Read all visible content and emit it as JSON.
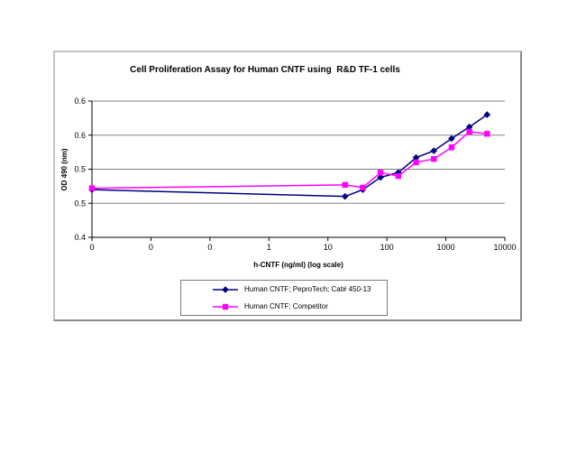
{
  "chart_data": {
    "type": "line",
    "title": "Cell Proliferation Assay for Human CNTF using  R&D TF-1 cells",
    "xlabel": "h-CNTF (ng/ml) (log scale)",
    "ylabel": "OD 490 (nm)",
    "x_scale": "log",
    "grid": "horizontal",
    "legend_position": "bottom",
    "ylim": [
      0.4,
      0.6
    ],
    "y_tick_values": [
      0.6,
      0.55,
      0.5,
      0.45,
      0.4
    ],
    "y_tick_labels": [
      "0.6",
      "0.6",
      "0.5",
      "0.5",
      "0.4"
    ],
    "x_tick_values": [
      0.001,
      0.01,
      0.1,
      1,
      10,
      100,
      1000,
      10000
    ],
    "x_tick_labels": [
      "0",
      "0",
      "0",
      "1",
      "10",
      "100",
      "1000",
      "10000"
    ],
    "x": [
      0.001,
      19.5,
      39,
      78,
      156,
      312.5,
      625,
      1250,
      2500,
      5000
    ],
    "x_note": "first point is the 0 ng/ml control plotted at the axis origin",
    "series": [
      {
        "name": "Human CNTF; PeproTech; Cat# 450-13",
        "color": "#000080",
        "marker": "diamond",
        "values": [
          0.47,
          0.46,
          0.47,
          0.488,
          0.495,
          0.517,
          0.527,
          0.545,
          0.562,
          0.58
        ]
      },
      {
        "name": "Human CNTF; Competitor",
        "color": "#FF00FF",
        "marker": "square",
        "values": [
          0.472,
          0.477,
          0.473,
          0.495,
          0.49,
          0.51,
          0.515,
          0.532,
          0.555,
          0.552
        ]
      }
    ],
    "colors": {
      "gridline": "#808080",
      "axis": "#000000",
      "frame_border": "#8a8a8a"
    }
  }
}
